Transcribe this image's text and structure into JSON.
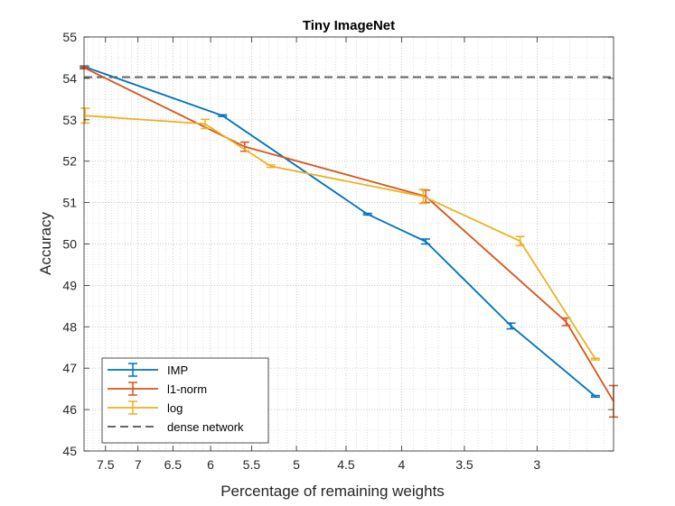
{
  "chart_data": {
    "type": "line",
    "title": "Tiny ImageNet",
    "xlabel": "Percentage of remaining weights",
    "ylabel": "Accuracy",
    "x_scale": "log",
    "x_reversed": true,
    "xlim": [
      7.85,
      2.55
    ],
    "ylim": [
      45,
      55
    ],
    "xticks": [
      7.5,
      7,
      6.5,
      6,
      5.5,
      5,
      4.5,
      4,
      3.5,
      3
    ],
    "xtick_labels": [
      "7.5",
      "7",
      "6.5",
      "6",
      "5.5",
      "5",
      "4.5",
      "4",
      "3.5",
      "3"
    ],
    "yticks": [
      45,
      46,
      47,
      48,
      49,
      50,
      51,
      52,
      53,
      54,
      55
    ],
    "ytick_labels": [
      "45",
      "46",
      "47",
      "48",
      "49",
      "50",
      "51",
      "52",
      "53",
      "54",
      "55"
    ],
    "grid": true,
    "legend_position": "bottom-left",
    "series": [
      {
        "name": "IMP",
        "color": "#0072BD",
        "x": [
          7.84,
          5.85,
          4.3,
          3.8,
          3.17,
          2.65
        ],
        "y": [
          54.28,
          53.1,
          50.72,
          50.06,
          48.02,
          46.32
        ],
        "err": [
          0.02,
          0.02,
          0.02,
          0.06,
          0.07,
          0.02
        ]
      },
      {
        "name": "l1-norm",
        "color": "#D95319",
        "x": [
          7.85,
          5.58,
          3.8,
          2.82,
          2.55
        ],
        "y": [
          54.26,
          52.35,
          51.15,
          48.12,
          46.2
        ],
        "err": [
          0.03,
          0.11,
          0.15,
          0.09,
          0.38
        ]
      },
      {
        "name": "log",
        "color": "#EDB120",
        "x": [
          7.83,
          6.07,
          5.28,
          3.82,
          3.11,
          2.65
        ],
        "y": [
          53.1,
          52.9,
          51.88,
          51.15,
          50.07,
          47.22
        ],
        "err": [
          0.18,
          0.11,
          0.03,
          0.17,
          0.11,
          0.02
        ]
      }
    ],
    "reference_lines": [
      {
        "name": "dense network",
        "y": 54.03,
        "color": "#666666",
        "style": "dashed"
      }
    ]
  }
}
